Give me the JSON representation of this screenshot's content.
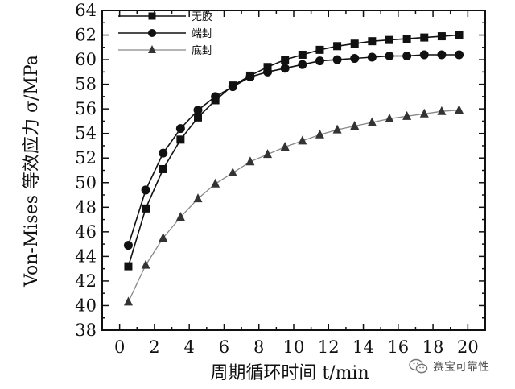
{
  "chart_data": {
    "type": "line",
    "xlabel": "周期循环时间 t/min",
    "ylabel": "Von-Mises 等效应力 σ/MPa",
    "xlim": [
      -1,
      21
    ],
    "ylim": [
      38,
      64
    ],
    "xticks": [
      "0",
      "2",
      "4",
      "6",
      "8",
      "10",
      "12",
      "14",
      "16",
      "18",
      "20"
    ],
    "yticks": [
      "38",
      "40",
      "42",
      "44",
      "46",
      "48",
      "50",
      "52",
      "54",
      "56",
      "58",
      "60",
      "62",
      "64"
    ],
    "legend_position": "top-left",
    "grid": false,
    "series": [
      {
        "name": "无胶",
        "marker": "square",
        "x": [
          0.5,
          1.5,
          2.5,
          3.5,
          4.5,
          5.5,
          6.5,
          7.5,
          8.5,
          9.5,
          10.5,
          11.5,
          12.5,
          13.5,
          14.5,
          15.5,
          16.5,
          17.5,
          18.5,
          19.5
        ],
        "y": [
          43.2,
          47.9,
          51.1,
          53.5,
          55.3,
          56.7,
          57.9,
          58.7,
          59.4,
          60.0,
          60.4,
          60.8,
          61.1,
          61.3,
          61.5,
          61.6,
          61.7,
          61.8,
          61.9,
          62.0
        ]
      },
      {
        "name": "端封",
        "marker": "circle",
        "x": [
          0.5,
          1.5,
          2.5,
          3.5,
          4.5,
          5.5,
          6.5,
          7.5,
          8.5,
          9.5,
          10.5,
          11.5,
          12.5,
          13.5,
          14.5,
          15.5,
          16.5,
          17.5,
          18.5,
          19.5
        ],
        "y": [
          44.9,
          49.4,
          52.4,
          54.4,
          55.9,
          57.0,
          57.8,
          58.6,
          59.0,
          59.3,
          59.6,
          59.9,
          60.0,
          60.1,
          60.2,
          60.3,
          60.3,
          60.4,
          60.4,
          60.4
        ]
      },
      {
        "name": "底封",
        "marker": "triangle",
        "x": [
          0.5,
          1.5,
          2.5,
          3.5,
          4.5,
          5.5,
          6.5,
          7.5,
          8.5,
          9.5,
          10.5,
          11.5,
          12.5,
          13.5,
          14.5,
          15.5,
          16.5,
          17.5,
          18.5,
          19.5
        ],
        "y": [
          40.3,
          43.3,
          45.5,
          47.2,
          48.7,
          49.9,
          50.8,
          51.7,
          52.3,
          52.9,
          53.4,
          53.9,
          54.3,
          54.6,
          54.9,
          55.2,
          55.4,
          55.6,
          55.8,
          55.9
        ]
      }
    ]
  },
  "watermark": {
    "icon": "wechat-icon",
    "text": "赛宝可靠性"
  }
}
